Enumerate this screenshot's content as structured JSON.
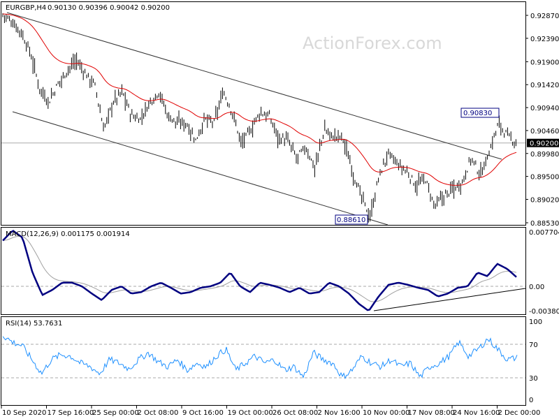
{
  "symbol_label": "EURGBP,H4",
  "ohlc_label": "0.90130 0.90396 0.90042 0.90200",
  "watermark": "ActionForex.com",
  "colors": {
    "ma": "#e00000",
    "macd": "#000080",
    "signal": "#a0a0a0",
    "rsi": "#1e90ff",
    "price_bars": "#000000"
  },
  "chart_data": [
    {
      "type": "line",
      "title": "EURGBP,H4",
      "ylim": [
        0.8853,
        0.9287
      ],
      "yticks": [
        "0.92870",
        "0.92390",
        "0.91900",
        "0.91420",
        "0.90940",
        "0.90460",
        "0.89980",
        "0.89500",
        "0.89020",
        "0.88530"
      ],
      "current_price": "0.90200",
      "annotations": {
        "high": "0.90830",
        "low": "0.88610"
      },
      "xticks": [
        "10 Sep 2020",
        "17 Sep 16:00",
        "25 Sep 00:00",
        "2 Oct 08:00",
        "9 Oct 16:00",
        "19 Oct 00:00",
        "26 Oct 08:00",
        "2 Nov 16:00",
        "10 Nov 00:00",
        "17 Nov 08:00",
        "24 Nov 16:00",
        "2 Dec 00:00"
      ],
      "close": [
        0.929,
        0.9275,
        0.9253,
        0.921,
        0.9137,
        0.9107,
        0.9144,
        0.9173,
        0.9195,
        0.9166,
        0.9144,
        0.9049,
        0.9107,
        0.9129,
        0.9078,
        0.9071,
        0.9107,
        0.9129,
        0.9078,
        0.9063,
        0.9063,
        0.9027,
        0.9071,
        0.9063,
        0.9129,
        0.9085,
        0.902,
        0.9049,
        0.9085,
        0.9078,
        0.9034,
        0.9027,
        0.899,
        0.9012,
        0.8968,
        0.9049,
        0.9034,
        0.9034,
        0.8968,
        0.891,
        0.8866,
        0.8954,
        0.8998,
        0.8976,
        0.8961,
        0.8932,
        0.8946,
        0.8888,
        0.891,
        0.8925,
        0.8939,
        0.899,
        0.8954,
        0.9005,
        0.9063,
        0.9034,
        0.902
      ]
    },
    {
      "type": "line",
      "title": "MACD(12,26,9) 0.001175 0.001914",
      "ylim": [
        -0.003804,
        0.007704
      ],
      "yticks": [
        "0.007704",
        "0.00",
        "-0.003804"
      ],
      "macd": [
        0.0063,
        0.0077,
        0.0067,
        0.0019,
        -0.0012,
        -0.0005,
        0.0005,
        0.0005,
        0.0,
        -0.001,
        -0.0019,
        -0.0005,
        0.0,
        -0.001,
        -0.0008,
        0.0,
        0.0005,
        -0.0002,
        -0.001,
        -0.0008,
        -0.0002,
        0.0,
        0.0005,
        0.0019,
        0.0,
        -0.0008,
        0.0005,
        0.0002,
        -0.0002,
        -0.0008,
        -0.0002,
        -0.001,
        -0.0008,
        0.0005,
        0.0,
        -0.001,
        -0.0024,
        -0.0034,
        -0.0014,
        0.0002,
        0.0005,
        0.0002,
        -0.0002,
        -0.0005,
        -0.0014,
        -0.001,
        -0.0002,
        0.0,
        0.0019,
        0.0014,
        0.0031,
        0.0024,
        0.0012
      ]
    },
    {
      "type": "line",
      "title": "RSI(14) 53.7631",
      "ylim": [
        0,
        100
      ],
      "yticks": [
        "100",
        "70",
        "30",
        "0"
      ],
      "rsi": [
        80.8,
        72.5,
        68.3,
        51.7,
        35,
        51.7,
        57.5,
        55.8,
        47.5,
        43.3,
        35,
        51.7,
        47.5,
        40.8,
        51.7,
        60,
        49.2,
        43.3,
        51.7,
        39.2,
        47.5,
        43.3,
        55.8,
        64.2,
        39.2,
        47.5,
        55.8,
        47.5,
        51.7,
        39.2,
        43.3,
        30.8,
        60,
        51.7,
        47.5,
        30.8,
        39.2,
        55.8,
        47.5,
        43.3,
        51.7,
        43.3,
        47.5,
        30.8,
        43.3,
        47.5,
        55.8,
        72.5,
        55.8,
        64.2,
        76.7,
        64.2,
        51.7,
        53.8
      ]
    }
  ]
}
